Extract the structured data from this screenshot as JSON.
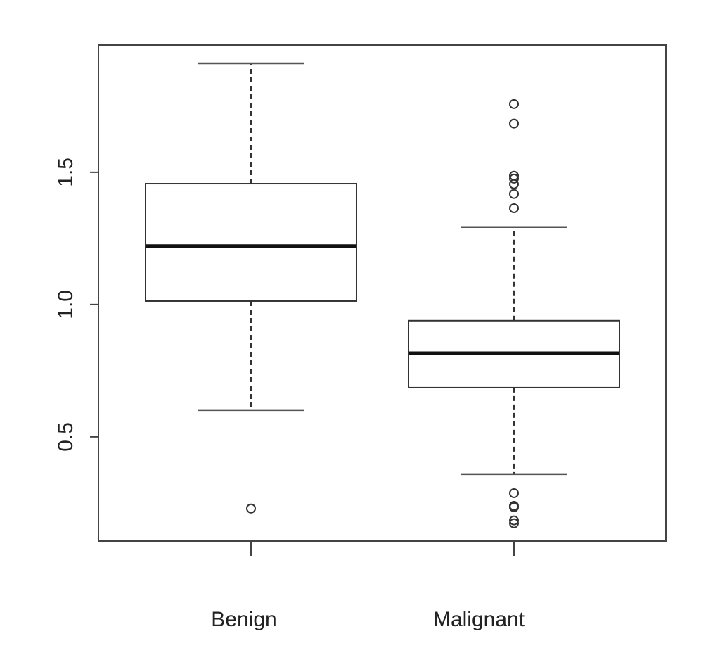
{
  "chart_data": {
    "type": "box",
    "categories": [
      "Benign",
      "Malignant"
    ],
    "boxes": [
      {
        "whisker_low": 0.601,
        "q1": 1.013,
        "median": 1.221,
        "q3": 1.457,
        "whisker_high": 1.912,
        "outliers": [
          0.229
        ]
      },
      {
        "whisker_low": 0.359,
        "q1": 0.686,
        "median": 0.816,
        "q3": 0.939,
        "whisker_high": 1.293,
        "outliers": [
          1.758,
          1.684,
          1.487,
          1.476,
          1.455,
          1.418,
          1.364,
          0.287,
          0.239,
          0.234,
          0.184,
          0.173
        ]
      }
    ],
    "color": "#333333",
    "ylim": [
      0.106,
      1.981
    ],
    "yticks": [
      0.5,
      {
        "value": 1,
        "label": "1.0"
      },
      1.5
    ]
  }
}
